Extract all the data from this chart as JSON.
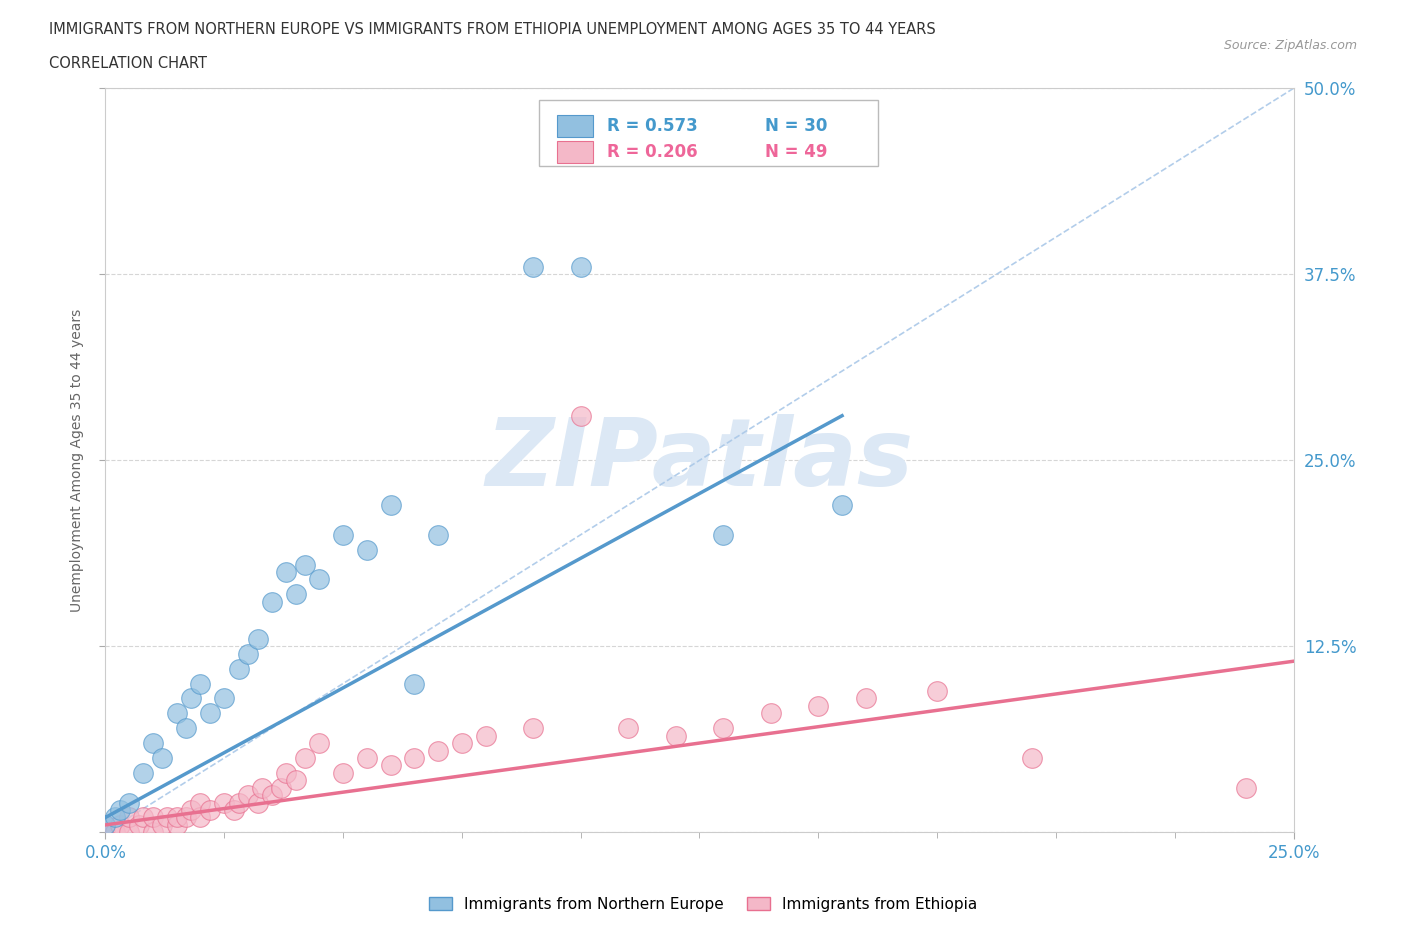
{
  "title_line1": "IMMIGRANTS FROM NORTHERN EUROPE VS IMMIGRANTS FROM ETHIOPIA UNEMPLOYMENT AMONG AGES 35 TO 44 YEARS",
  "title_line2": "CORRELATION CHART",
  "source_text": "Source: ZipAtlas.com",
  "ylabel": "Unemployment Among Ages 35 to 44 years",
  "xlim": [
    0.0,
    0.25
  ],
  "ylim": [
    0.0,
    0.5
  ],
  "yticks": [
    0.0,
    0.125,
    0.25,
    0.375,
    0.5
  ],
  "ytick_labels": [
    "",
    "12.5%",
    "25.0%",
    "37.5%",
    "50.0%"
  ],
  "xtick_major": [
    0.0,
    0.25
  ],
  "xtick_minor": [
    0.025,
    0.05,
    0.075,
    0.1,
    0.125,
    0.15,
    0.175,
    0.2,
    0.225
  ],
  "xtick_labels": [
    "0.0%",
    "25.0%"
  ],
  "grid_color": "#cccccc",
  "watermark_text": "ZIPatlas",
  "watermark_color": "#dce8f5",
  "color_blue": "#92c0e0",
  "color_pink": "#f4b8c8",
  "color_blue_line": "#5599cc",
  "color_pink_line": "#e87090",
  "color_blue_text": "#4499cc",
  "color_pink_text": "#ee6699",
  "color_diag": "#aac8e8",
  "blue_scatter_x": [
    0.0,
    0.002,
    0.003,
    0.005,
    0.008,
    0.01,
    0.012,
    0.015,
    0.017,
    0.018,
    0.02,
    0.022,
    0.025,
    0.028,
    0.03,
    0.032,
    0.035,
    0.038,
    0.04,
    0.042,
    0.045,
    0.05,
    0.055,
    0.06,
    0.065,
    0.07,
    0.09,
    0.1,
    0.13,
    0.155
  ],
  "blue_scatter_y": [
    0.005,
    0.01,
    0.015,
    0.02,
    0.04,
    0.06,
    0.05,
    0.08,
    0.07,
    0.09,
    0.1,
    0.08,
    0.09,
    0.11,
    0.12,
    0.13,
    0.155,
    0.175,
    0.16,
    0.18,
    0.17,
    0.2,
    0.19,
    0.22,
    0.1,
    0.2,
    0.38,
    0.38,
    0.2,
    0.22
  ],
  "pink_scatter_x": [
    0.0,
    0.0,
    0.002,
    0.003,
    0.005,
    0.005,
    0.007,
    0.008,
    0.01,
    0.01,
    0.012,
    0.013,
    0.015,
    0.015,
    0.017,
    0.018,
    0.02,
    0.02,
    0.022,
    0.025,
    0.027,
    0.028,
    0.03,
    0.032,
    0.033,
    0.035,
    0.037,
    0.038,
    0.04,
    0.042,
    0.045,
    0.05,
    0.055,
    0.06,
    0.065,
    0.07,
    0.075,
    0.08,
    0.09,
    0.1,
    0.11,
    0.12,
    0.13,
    0.14,
    0.15,
    0.16,
    0.175,
    0.195,
    0.24
  ],
  "pink_scatter_y": [
    0.0,
    0.005,
    0.0,
    0.005,
    0.0,
    0.01,
    0.005,
    0.01,
    0.0,
    0.01,
    0.005,
    0.01,
    0.005,
    0.01,
    0.01,
    0.015,
    0.01,
    0.02,
    0.015,
    0.02,
    0.015,
    0.02,
    0.025,
    0.02,
    0.03,
    0.025,
    0.03,
    0.04,
    0.035,
    0.05,
    0.06,
    0.04,
    0.05,
    0.045,
    0.05,
    0.055,
    0.06,
    0.065,
    0.07,
    0.28,
    0.07,
    0.065,
    0.07,
    0.08,
    0.085,
    0.09,
    0.095,
    0.05,
    0.03
  ],
  "blue_line_x": [
    0.0,
    0.155
  ],
  "blue_line_y": [
    0.01,
    0.28
  ],
  "pink_line_x": [
    0.0,
    0.25
  ],
  "pink_line_y": [
    0.005,
    0.115
  ],
  "diag_line_x": [
    0.0,
    0.25
  ],
  "diag_line_y": [
    0.0,
    0.5
  ],
  "legend_label_blue": "Immigrants from Northern Europe",
  "legend_label_pink": "Immigrants from Ethiopia",
  "R1": "0.573",
  "N1": "30",
  "R2": "0.206",
  "N2": "49"
}
